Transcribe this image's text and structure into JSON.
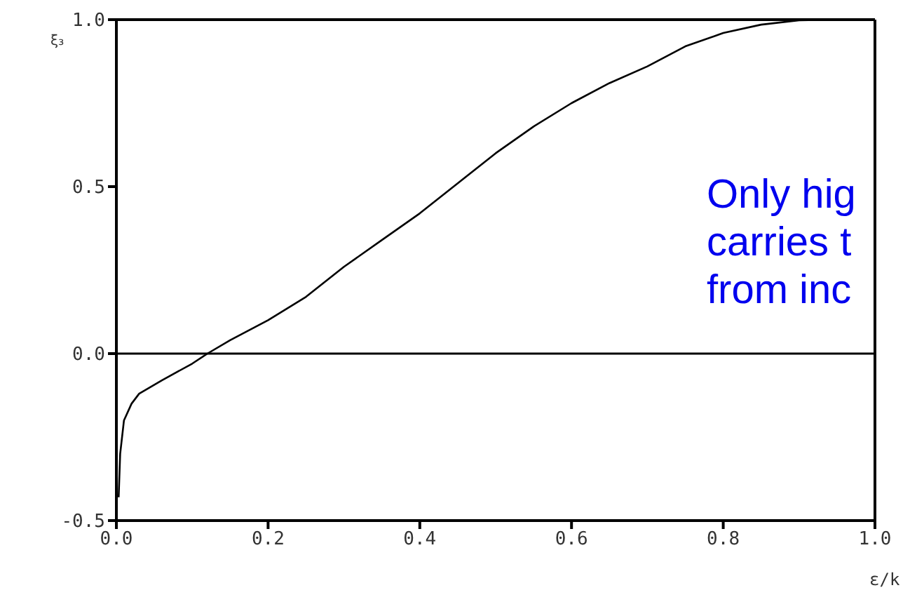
{
  "chart_data": {
    "type": "line",
    "xlabel": "ε/k",
    "ylabel": "ξ₃",
    "x": [
      0.003,
      0.005,
      0.01,
      0.02,
      0.03,
      0.06,
      0.1,
      0.12,
      0.15,
      0.2,
      0.25,
      0.3,
      0.35,
      0.4,
      0.45,
      0.5,
      0.55,
      0.6,
      0.65,
      0.7,
      0.75,
      0.8,
      0.85,
      0.9,
      0.95,
      1.0
    ],
    "series": [
      {
        "color": "#000000",
        "values": [
          -0.43,
          -0.3,
          -0.2,
          -0.15,
          -0.12,
          -0.08,
          -0.03,
          0.0,
          0.04,
          0.1,
          0.17,
          0.26,
          0.34,
          0.42,
          0.51,
          0.6,
          0.68,
          0.75,
          0.81,
          0.86,
          0.92,
          0.96,
          0.985,
          0.998,
          1.0,
          1.0
        ]
      }
    ],
    "xlim": [
      0,
      1
    ],
    "xticks": [
      {
        "value": 0,
        "label": "0.0"
      },
      0.2,
      0.4,
      0.6,
      0.8,
      {
        "value": 1,
        "label": "1.0"
      }
    ],
    "ylim": [
      -0.5,
      1
    ],
    "yticks": [
      -0.5,
      {
        "value": 0,
        "label": "0.0"
      },
      0.5,
      {
        "value": 1,
        "label": "1.0"
      }
    ],
    "ref_lines": [
      {
        "axis": "y",
        "value": 0,
        "color": "#000000"
      }
    ],
    "annotations": [
      "Only hig",
      "carries t",
      "from inc"
    ],
    "marker": "none",
    "line_style": "solid",
    "grid": false,
    "legend": false
  }
}
